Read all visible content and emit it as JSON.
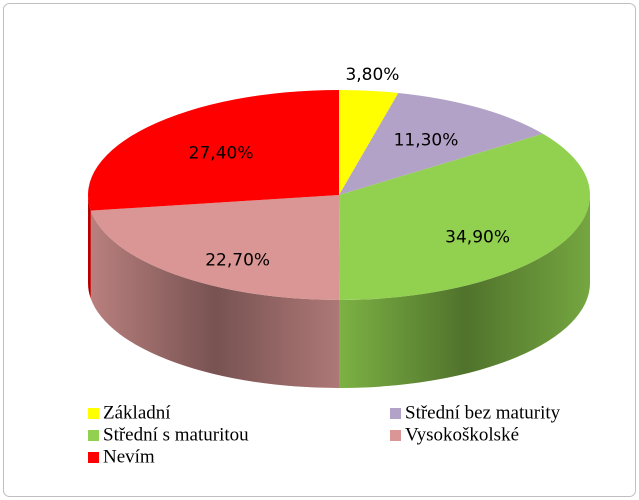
{
  "chart_data": {
    "type": "pie",
    "categories": [
      "Základní",
      "Střední bez maturity",
      "Střední s maturitou",
      "Vysokoškolské",
      "Nevím"
    ],
    "values": [
      3.8,
      11.3,
      34.9,
      22.7,
      27.4
    ],
    "value_labels": [
      "3,80%",
      "11,30%",
      "34,90%",
      "22,70%",
      "27,40%"
    ],
    "colors": [
      "#ffff00",
      "#b3a2c7",
      "#92d050",
      "#d99694",
      "#ff0000"
    ],
    "legend": "bottom"
  }
}
